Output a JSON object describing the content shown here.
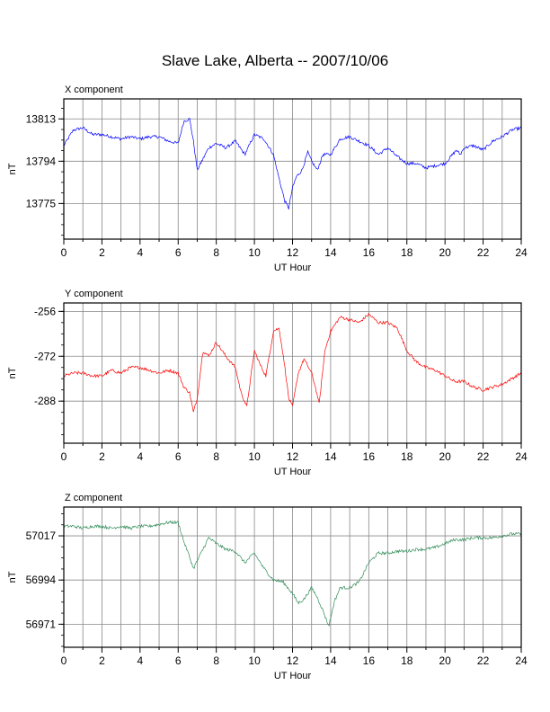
{
  "title": "Slave Lake, Alberta -- 2007/10/06",
  "colors": {
    "x": "#0000ff",
    "y": "#ff0000",
    "z": "#2e8b57",
    "grid": "#888888"
  },
  "chart_data": [
    {
      "type": "line",
      "panel_title": "X component",
      "xlabel": "UT Hour",
      "ylabel": "nT",
      "color": "#0000ff",
      "xlim": [
        0,
        24
      ],
      "ylim": [
        13759,
        13822
      ],
      "x_ticks": [
        0,
        2,
        4,
        6,
        8,
        10,
        12,
        14,
        16,
        18,
        20,
        22,
        24
      ],
      "y_ticks": [
        13813,
        13794,
        13775
      ],
      "grid": true,
      "series": [
        {
          "x": [
            0,
            0.5,
            1,
            1.5,
            2,
            2.5,
            3,
            3.5,
            4,
            4.5,
            5,
            5.5,
            6,
            6.3,
            6.6,
            6.8,
            7,
            7.3,
            7.6,
            8,
            8.5,
            9,
            9.5,
            10,
            10.5,
            11,
            11.3,
            11.6,
            11.8,
            12,
            12.2,
            12.5,
            12.8,
            13,
            13.3,
            13.6,
            14,
            14.5,
            15,
            15.5,
            16,
            16.5,
            17,
            17.5,
            18,
            18.5,
            19,
            19.5,
            20,
            20.3,
            20.6,
            20.8,
            21,
            21.5,
            22,
            22.5,
            23,
            23.5,
            24
          ],
          "y": [
            13801,
            13808,
            13809,
            13806,
            13806,
            13805,
            13804,
            13805,
            13804,
            13805,
            13805,
            13803,
            13802,
            13812,
            13813,
            13803,
            13790,
            13795,
            13800,
            13802,
            13800,
            13803,
            13797,
            13806,
            13804,
            13797,
            13786,
            13776,
            13773,
            13782,
            13787,
            13790,
            13798,
            13794,
            13790,
            13797,
            13797,
            13804,
            13805,
            13803,
            13801,
            13797,
            13800,
            13796,
            13793,
            13793,
            13791,
            13792,
            13793,
            13796,
            13799,
            13797,
            13800,
            13801,
            13799,
            13803,
            13805,
            13808,
            13809
          ]
        }
      ]
    },
    {
      "type": "line",
      "panel_title": "Y component",
      "xlabel": "UT Hour",
      "ylabel": "nT",
      "color": "#ff0000",
      "xlim": [
        0,
        24
      ],
      "ylim": [
        -303,
        -253
      ],
      "x_ticks": [
        0,
        2,
        4,
        6,
        8,
        10,
        12,
        14,
        16,
        18,
        20,
        22,
        24
      ],
      "y_ticks": [
        -256,
        -272,
        -288
      ],
      "grid": true,
      "series": [
        {
          "x": [
            0,
            0.5,
            1,
            1.5,
            2,
            2.5,
            3,
            3.5,
            4,
            4.5,
            5,
            5.5,
            6,
            6.3,
            6.6,
            6.8,
            7,
            7.3,
            7.6,
            8,
            8.5,
            9,
            9.3,
            9.6,
            10,
            10.3,
            10.6,
            11,
            11.3,
            11.6,
            11.8,
            12,
            12.3,
            12.6,
            13,
            13.2,
            13.4,
            13.7,
            14,
            14.5,
            15,
            15.5,
            16,
            16.5,
            17,
            17.5,
            18,
            18.5,
            19,
            19.5,
            20,
            20.5,
            21,
            21.5,
            22,
            22.5,
            23,
            23.5,
            24
          ],
          "y": [
            -279,
            -278,
            -278,
            -279,
            -279,
            -277,
            -278,
            -276,
            -276,
            -277,
            -278,
            -277,
            -278,
            -283,
            -285,
            -292,
            -287,
            -270,
            -272,
            -267,
            -272,
            -276,
            -285,
            -290,
            -270,
            -275,
            -279,
            -263,
            -262,
            -276,
            -287,
            -290,
            -278,
            -273,
            -278,
            -283,
            -289,
            -270,
            -263,
            -258,
            -259,
            -260,
            -257,
            -260,
            -260,
            -262,
            -270,
            -274,
            -276,
            -277,
            -279,
            -281,
            -281,
            -283,
            -284,
            -283,
            -282,
            -280,
            -278
          ]
        }
      ]
    },
    {
      "type": "line",
      "panel_title": "Z component",
      "xlabel": "UT Hour",
      "ylabel": "nT",
      "color": "#2e8b57",
      "xlim": [
        0,
        24
      ],
      "ylim": [
        56959,
        57032
      ],
      "x_ticks": [
        0,
        2,
        4,
        6,
        8,
        10,
        12,
        14,
        16,
        18,
        20,
        22,
        24
      ],
      "y_ticks": [
        57017,
        56994,
        56971
      ],
      "grid": true,
      "series": [
        {
          "x": [
            0,
            0.5,
            1,
            1.5,
            2,
            2.5,
            3,
            3.5,
            4,
            4.5,
            5,
            5.5,
            6,
            6.3,
            6.6,
            6.8,
            7,
            7.3,
            7.6,
            8,
            8.5,
            9,
            9.5,
            10,
            10.5,
            11,
            11.5,
            12,
            12.3,
            12.6,
            13,
            13.3,
            13.6,
            13.9,
            14.2,
            14.5,
            15,
            15.5,
            16,
            16.5,
            17,
            17.5,
            18,
            18.5,
            19,
            19.5,
            20,
            20.5,
            21,
            21.5,
            22,
            22.5,
            23,
            23.5,
            24
          ],
          "y": [
            57022,
            57022,
            57021,
            57022,
            57022,
            57021,
            57022,
            57021,
            57022,
            57022,
            57023,
            57024,
            57024,
            57014,
            57006,
            57000,
            57004,
            57010,
            57016,
            57013,
            57010,
            57009,
            57003,
            57008,
            57000,
            56994,
            56993,
            56987,
            56982,
            56984,
            56990,
            56985,
            56978,
            56970,
            56983,
            56990,
            56990,
            56993,
            57003,
            57008,
            57008,
            57009,
            57009,
            57010,
            57010,
            57011,
            57013,
            57015,
            57015,
            57016,
            57016,
            57016,
            57017,
            57018,
            57018
          ]
        }
      ]
    }
  ]
}
